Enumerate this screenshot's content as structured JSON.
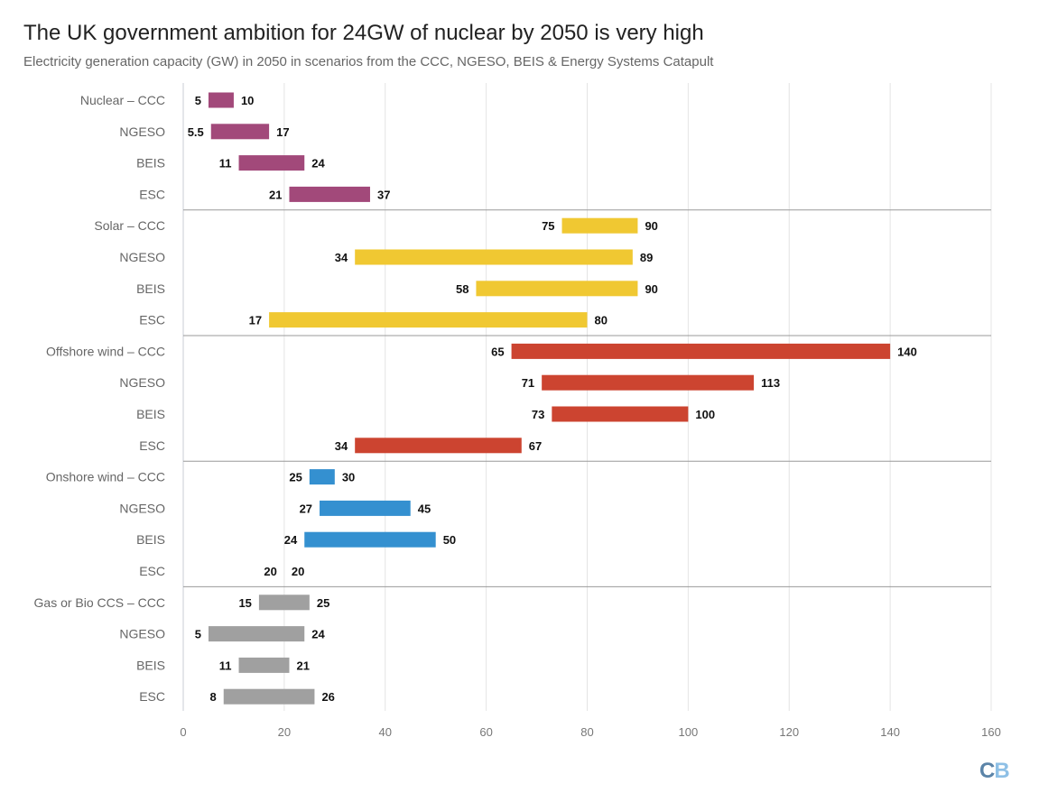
{
  "chart_data": {
    "type": "bar",
    "orientation": "horizontal-range",
    "title": "The UK government ambition for 24GW of nuclear by 2050 is very high",
    "subtitle": "Electricity generation capacity (GW) in 2050 in scenarios from the CCC, NGESO, BEIS & Energy Systems Catapult",
    "xlim": [
      0,
      160
    ],
    "xticks": [
      "0",
      "20",
      "40",
      "60",
      "80",
      "100",
      "120",
      "140",
      "160"
    ],
    "grid": true,
    "groups": [
      {
        "name": "Nuclear",
        "color": "#a2497a",
        "rows": [
          {
            "label": "Nuclear – CCC",
            "min": 5,
            "max": 10,
            "min_label": "5",
            "max_label": "10"
          },
          {
            "label": "NGESO",
            "min": 5.5,
            "max": 17,
            "min_label": "5.5",
            "max_label": "17"
          },
          {
            "label": "BEIS",
            "min": 11,
            "max": 24,
            "min_label": "11",
            "max_label": "24"
          },
          {
            "label": "ESC",
            "min": 21,
            "max": 37,
            "min_label": "21",
            "max_label": "37"
          }
        ]
      },
      {
        "name": "Solar",
        "color": "#f0c832",
        "rows": [
          {
            "label": "Solar – CCC",
            "min": 75,
            "max": 90,
            "min_label": "75",
            "max_label": "90"
          },
          {
            "label": "NGESO",
            "min": 34,
            "max": 89,
            "min_label": "34",
            "max_label": "89"
          },
          {
            "label": "BEIS",
            "min": 58,
            "max": 90,
            "min_label": "58",
            "max_label": "90"
          },
          {
            "label": "ESC",
            "min": 17,
            "max": 80,
            "min_label": "17",
            "max_label": "80"
          }
        ]
      },
      {
        "name": "Offshore wind",
        "color": "#cc4430",
        "rows": [
          {
            "label": "Offshore wind – CCC",
            "min": 65,
            "max": 140,
            "min_label": "65",
            "max_label": "140"
          },
          {
            "label": "NGESO",
            "min": 71,
            "max": 113,
            "min_label": "71",
            "max_label": "113"
          },
          {
            "label": "BEIS",
            "min": 73,
            "max": 100,
            "min_label": "73",
            "max_label": "100"
          },
          {
            "label": "ESC",
            "min": 34,
            "max": 67,
            "min_label": "34",
            "max_label": "67"
          }
        ]
      },
      {
        "name": "Onshore wind",
        "color": "#3490d0",
        "rows": [
          {
            "label": "Onshore wind – CCC",
            "min": 25,
            "max": 30,
            "min_label": "25",
            "max_label": "30"
          },
          {
            "label": "NGESO",
            "min": 27,
            "max": 45,
            "min_label": "27",
            "max_label": "45"
          },
          {
            "label": "BEIS",
            "min": 24,
            "max": 50,
            "min_label": "24",
            "max_label": "50"
          },
          {
            "label": "ESC",
            "min": 20,
            "max": 20,
            "min_label": "20",
            "max_label": "20"
          }
        ]
      },
      {
        "name": "Gas or Bio CCS",
        "color": "#a0a0a0",
        "rows": [
          {
            "label": "Gas or Bio CCS – CCC",
            "min": 15,
            "max": 25,
            "min_label": "15",
            "max_label": "25"
          },
          {
            "label": "NGESO",
            "min": 5,
            "max": 24,
            "min_label": "5",
            "max_label": "24"
          },
          {
            "label": "BEIS",
            "min": 11,
            "max": 21,
            "min_label": "11",
            "max_label": "21"
          },
          {
            "label": "ESC",
            "min": 8,
            "max": 26,
            "min_label": "8",
            "max_label": "26"
          }
        ]
      }
    ]
  },
  "logo": {
    "c": "C",
    "b": "B",
    "c_color": "#5b84a8",
    "b_color": "#8ec0e6"
  }
}
